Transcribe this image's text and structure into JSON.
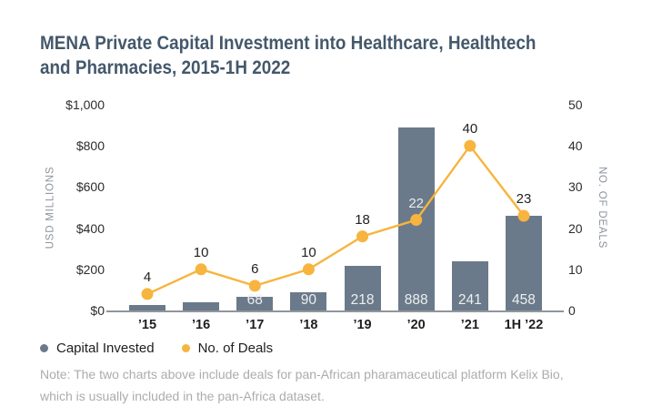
{
  "title": {
    "line1": "MENA Private Capital Investment into Healthcare, Healthtech",
    "line2": "and Pharmacies, 2015-1H 2022"
  },
  "legend": [
    {
      "label": "Capital Invested",
      "color": "#6B7A8A"
    },
    {
      "label": "No. of Deals",
      "color": "#F7B43E"
    }
  ],
  "note": {
    "line1": "Note: The two charts above include deals for pan-African pharamaceutical platform Kelix Bio,",
    "line2": "which is usually included in the pan-Africa dataset."
  },
  "chart_data": {
    "type": "bar",
    "subtype": "combo-bar-line",
    "title": "MENA Private Capital Investment into Healthcare, Healthtech and Pharmacies, 2015-1H 2022",
    "categories": [
      "’15",
      "’16",
      "’17",
      "’18",
      "’19",
      "’20",
      "’21",
      "1H ’22"
    ],
    "series": [
      {
        "name": "Capital Invested",
        "type": "bar",
        "axis": "left",
        "color": "#6B7A8A",
        "values": [
          25,
          40,
          68,
          90,
          218,
          888,
          241,
          458
        ],
        "value_labels": [
          "",
          "",
          "68",
          "90",
          "218",
          "888",
          "241",
          "458"
        ]
      },
      {
        "name": "No. of Deals",
        "type": "line",
        "axis": "right",
        "color": "#F7B43E",
        "values": [
          4,
          10,
          6,
          10,
          18,
          22,
          40,
          23
        ],
        "value_labels": [
          "4",
          "10",
          "6",
          "10",
          "18",
          "22",
          "40",
          "23"
        ]
      }
    ],
    "left_axis": {
      "title": "USD MILLIONS",
      "min": 0,
      "max": 1000,
      "ticks": [
        "$1,000",
        "$800",
        "$600",
        "$400",
        "$200",
        "$0"
      ]
    },
    "right_axis": {
      "title": "NO. OF DEALS",
      "min": 0,
      "max": 50,
      "ticks": [
        "50",
        "40",
        "30",
        "20",
        "10",
        "0"
      ]
    },
    "grid": false,
    "legend_position": "bottom-left"
  }
}
